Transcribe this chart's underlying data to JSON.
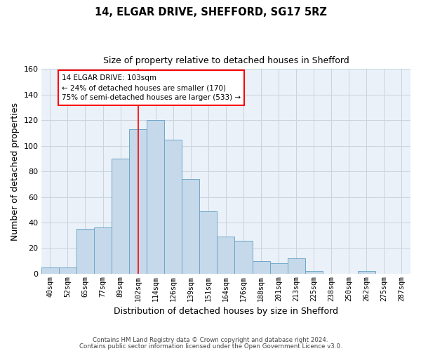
{
  "title1": "14, ELGAR DRIVE, SHEFFORD, SG17 5RZ",
  "title2": "Size of property relative to detached houses in Shefford",
  "xlabel": "Distribution of detached houses by size in Shefford",
  "ylabel": "Number of detached properties",
  "bar_labels": [
    "40sqm",
    "52sqm",
    "65sqm",
    "77sqm",
    "89sqm",
    "102sqm",
    "114sqm",
    "126sqm",
    "139sqm",
    "151sqm",
    "164sqm",
    "176sqm",
    "188sqm",
    "201sqm",
    "213sqm",
    "225sqm",
    "238sqm",
    "250sqm",
    "262sqm",
    "275sqm",
    "287sqm"
  ],
  "bar_values": [
    5,
    5,
    35,
    36,
    90,
    113,
    120,
    105,
    74,
    49,
    29,
    26,
    10,
    8,
    12,
    2,
    0,
    0,
    2,
    0,
    0
  ],
  "bar_color": "#c5d9ea",
  "bar_edge_color": "#6fa8c9",
  "ylim": [
    0,
    160
  ],
  "yticks": [
    0,
    20,
    40,
    60,
    80,
    100,
    120,
    140,
    160
  ],
  "property_line_index": 5,
  "annotation_title": "14 ELGAR DRIVE: 103sqm",
  "annotation_line1": "← 24% of detached houses are smaller (170)",
  "annotation_line2": "75% of semi-detached houses are larger (533) →",
  "footer1": "Contains HM Land Registry data © Crown copyright and database right 2024.",
  "footer2": "Contains public sector information licensed under the Open Government Licence v3.0.",
  "background_color": "#ffffff",
  "plot_bg_color": "#eaf1f8",
  "grid_color": "#c8d4de"
}
